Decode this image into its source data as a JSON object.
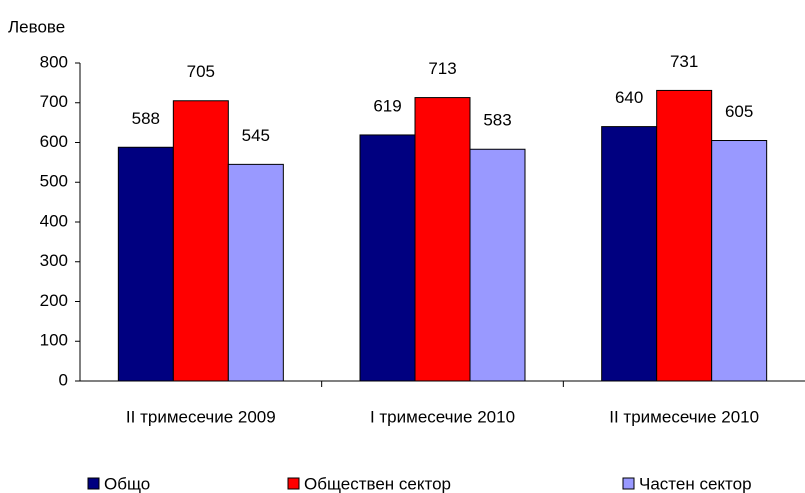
{
  "chart_data": {
    "type": "bar",
    "y_label": "Левове",
    "categories": [
      "II тримесечие 2009",
      "I тримесечие 2010",
      "II тримесечие 2010"
    ],
    "series": [
      {
        "name": "Общо",
        "color": "#000080",
        "values": [
          588,
          619,
          640
        ]
      },
      {
        "name": "Обществен сектор",
        "color": "#ff0000",
        "values": [
          705,
          713,
          731
        ]
      },
      {
        "name": "Частен сектор",
        "color": "#9999ff",
        "values": [
          545,
          583,
          605
        ]
      }
    ],
    "ylim": [
      0,
      800
    ],
    "yticks": [
      0,
      100,
      200,
      300,
      400,
      500,
      600,
      700,
      800
    ],
    "grid": false,
    "legend": "bottom"
  }
}
